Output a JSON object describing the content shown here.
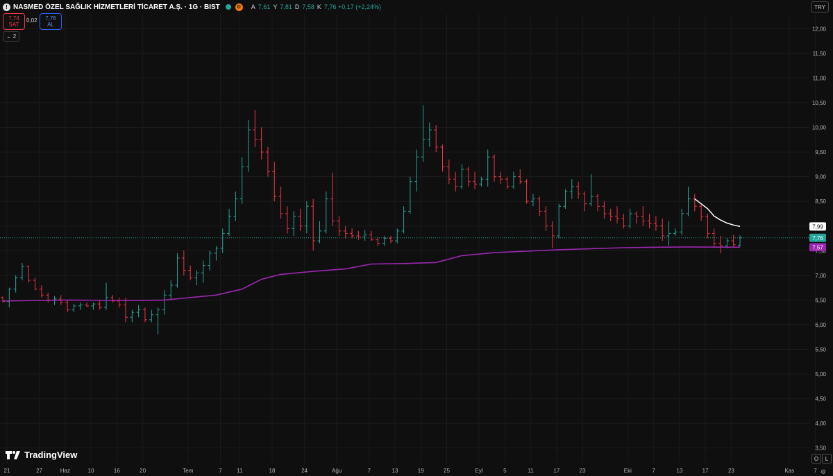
{
  "header": {
    "logo_letter": "!",
    "title": "NASMED ÖZEL SAĞLIK HİZMETLERİ TİCARET A.Ş. · 1G · BIST",
    "d_badge": "D",
    "ohlc": [
      {
        "k": "A",
        "v": "7,61"
      },
      {
        "k": "Y",
        "v": "7,81"
      },
      {
        "k": "D",
        "v": "7,58"
      },
      {
        "k": "K",
        "v": "7,76 +0,17 (+2,24%)"
      }
    ]
  },
  "trade": {
    "sell_price": "7,74",
    "sell_label": "SAT",
    "spread": "0,02",
    "buy_price": "7,76",
    "buy_label": "AL"
  },
  "indicators_toggle": {
    "count": "2"
  },
  "currency": "TRY",
  "branding": "TradingView",
  "bottom_buttons": {
    "log": "O",
    "lock": "L"
  },
  "colors": {
    "up": "#26a69a",
    "down": "#f23645",
    "ma_long": "#9c27b0",
    "ma_short": "#ffffff",
    "background": "#0f0f0f"
  },
  "chart_data": {
    "type": "ohlc",
    "price_axis_ticks": [
      "12,00",
      "11,50",
      "11,00",
      "10,50",
      "10,00",
      "9,50",
      "9,00",
      "8,50",
      "8,00",
      "7,50",
      "7,00",
      "6,50",
      "6,00",
      "5,50",
      "5,00",
      "4,50",
      "4,00",
      "3,50"
    ],
    "ylim": [
      3.2,
      12.3
    ],
    "time_axis_labels": [
      "21",
      "27",
      "Haz",
      "10",
      "16",
      "20",
      "Tem",
      "7",
      "11",
      "18",
      "24",
      "Ağu",
      "7",
      "13",
      "19",
      "25",
      "Eyl",
      "5",
      "11",
      "17",
      "23",
      "Eki",
      "7",
      "13",
      "17",
      "23",
      "Kas",
      "7"
    ],
    "price_labels": {
      "ma_short": "7,99",
      "last": "7,76",
      "ma_long": "7,57"
    },
    "last_price": 7.76,
    "bars": [
      [
        6.55,
        6.57,
        6.45,
        6.47
      ],
      [
        6.47,
        6.75,
        6.35,
        6.72
      ],
      [
        6.72,
        7.0,
        6.65,
        6.95
      ],
      [
        6.95,
        7.25,
        6.9,
        7.18
      ],
      [
        7.18,
        7.2,
        6.85,
        6.9
      ],
      [
        6.9,
        6.95,
        6.7,
        6.72
      ],
      [
        6.72,
        6.8,
        6.55,
        6.6
      ],
      [
        6.6,
        6.65,
        6.45,
        6.5
      ],
      [
        6.5,
        6.58,
        6.4,
        6.52
      ],
      [
        6.52,
        6.6,
        6.4,
        6.45
      ],
      [
        6.45,
        6.5,
        6.25,
        6.3
      ],
      [
        6.3,
        6.42,
        6.25,
        6.38
      ],
      [
        6.38,
        6.45,
        6.3,
        6.4
      ],
      [
        6.4,
        6.45,
        6.35,
        6.38
      ],
      [
        6.38,
        6.45,
        6.3,
        6.42
      ],
      [
        6.42,
        6.5,
        6.3,
        6.35
      ],
      [
        6.35,
        6.85,
        6.3,
        6.55
      ],
      [
        6.55,
        6.6,
        6.45,
        6.48
      ],
      [
        6.48,
        6.55,
        6.35,
        6.4
      ],
      [
        6.4,
        6.55,
        6.05,
        6.15
      ],
      [
        6.15,
        6.3,
        6.05,
        6.25
      ],
      [
        6.25,
        6.4,
        6.15,
        6.3
      ],
      [
        6.3,
        6.35,
        6.05,
        6.1
      ],
      [
        6.1,
        6.3,
        6.05,
        6.2
      ],
      [
        6.2,
        6.35,
        5.8,
        6.3
      ],
      [
        6.3,
        6.7,
        6.2,
        6.6
      ],
      [
        6.6,
        6.9,
        6.5,
        6.8
      ],
      [
        6.8,
        7.45,
        6.75,
        7.35
      ],
      [
        7.35,
        7.5,
        7.0,
        7.1
      ],
      [
        7.1,
        7.2,
        6.9,
        6.95
      ],
      [
        6.95,
        7.1,
        6.8,
        7.05
      ],
      [
        7.05,
        7.3,
        6.85,
        7.2
      ],
      [
        7.2,
        7.5,
        7.1,
        7.45
      ],
      [
        7.45,
        7.6,
        7.3,
        7.55
      ],
      [
        7.55,
        7.95,
        7.45,
        7.85
      ],
      [
        7.85,
        8.35,
        7.8,
        8.2
      ],
      [
        8.2,
        8.7,
        8.1,
        8.55
      ],
      [
        8.55,
        9.4,
        8.45,
        9.2
      ],
      [
        9.2,
        10.15,
        9.1,
        9.95
      ],
      [
        9.95,
        10.35,
        9.6,
        9.75
      ],
      [
        9.75,
        10.0,
        9.35,
        9.5
      ],
      [
        9.5,
        9.6,
        9.0,
        9.1
      ],
      [
        9.1,
        9.3,
        8.5,
        8.6
      ],
      [
        8.6,
        8.8,
        8.15,
        8.25
      ],
      [
        8.25,
        8.4,
        7.85,
        7.95
      ],
      [
        7.95,
        8.3,
        7.8,
        8.2
      ],
      [
        8.2,
        8.35,
        7.9,
        8.0
      ],
      [
        8.0,
        8.5,
        7.85,
        8.4
      ],
      [
        8.4,
        8.55,
        7.5,
        7.7
      ],
      [
        7.7,
        8.1,
        7.65,
        7.9
      ],
      [
        7.9,
        8.7,
        7.85,
        8.55
      ],
      [
        8.55,
        9.08,
        8.0,
        8.1
      ],
      [
        8.1,
        8.2,
        7.8,
        7.9
      ],
      [
        7.9,
        8.0,
        7.75,
        7.85
      ],
      [
        7.85,
        7.95,
        7.75,
        7.8
      ],
      [
        7.8,
        7.9,
        7.72,
        7.78
      ],
      [
        7.78,
        7.92,
        7.7,
        7.82
      ],
      [
        7.82,
        7.9,
        7.7,
        7.72
      ],
      [
        7.72,
        7.78,
        7.6,
        7.65
      ],
      [
        7.65,
        7.8,
        7.6,
        7.75
      ],
      [
        7.75,
        7.8,
        7.65,
        7.7
      ],
      [
        7.7,
        7.95,
        7.65,
        7.9
      ],
      [
        7.9,
        8.4,
        7.85,
        8.3
      ],
      [
        8.3,
        9.0,
        8.25,
        8.9
      ],
      [
        8.9,
        9.55,
        8.7,
        9.4
      ],
      [
        9.4,
        10.45,
        9.3,
        9.75
      ],
      [
        9.75,
        10.1,
        9.6,
        9.95
      ],
      [
        9.95,
        10.05,
        9.5,
        9.6
      ],
      [
        9.6,
        9.65,
        9.1,
        9.2
      ],
      [
        9.2,
        9.35,
        8.85,
        8.95
      ],
      [
        8.95,
        9.1,
        8.7,
        8.8
      ],
      [
        8.8,
        9.25,
        8.75,
        9.15
      ],
      [
        9.15,
        9.2,
        8.8,
        8.9
      ],
      [
        8.9,
        9.1,
        8.75,
        8.85
      ],
      [
        8.85,
        9.0,
        8.8,
        8.95
      ],
      [
        8.95,
        9.55,
        8.8,
        9.4
      ],
      [
        9.4,
        9.45,
        8.9,
        9.0
      ],
      [
        9.0,
        9.1,
        8.85,
        8.95
      ],
      [
        8.95,
        9.0,
        8.75,
        8.8
      ],
      [
        8.8,
        9.1,
        8.75,
        9.0
      ],
      [
        9.0,
        9.15,
        8.85,
        8.9
      ],
      [
        8.9,
        8.95,
        8.45,
        8.5
      ],
      [
        8.5,
        8.65,
        8.4,
        8.55
      ],
      [
        8.55,
        8.6,
        8.2,
        8.3
      ],
      [
        8.3,
        8.4,
        7.9,
        8.0
      ],
      [
        8.0,
        8.1,
        7.55,
        7.8
      ],
      [
        7.8,
        8.45,
        7.75,
        8.4
      ],
      [
        8.4,
        8.75,
        8.35,
        8.7
      ],
      [
        8.7,
        8.95,
        8.55,
        8.8
      ],
      [
        8.8,
        8.9,
        8.55,
        8.65
      ],
      [
        8.65,
        8.7,
        8.3,
        8.45
      ],
      [
        8.45,
        9.05,
        8.4,
        8.6
      ],
      [
        8.6,
        8.65,
        8.3,
        8.4
      ],
      [
        8.4,
        8.5,
        8.15,
        8.25
      ],
      [
        8.25,
        8.35,
        8.1,
        8.2
      ],
      [
        8.2,
        8.4,
        8.05,
        8.15
      ],
      [
        8.15,
        8.25,
        7.95,
        8.0
      ],
      [
        8.0,
        8.35,
        7.95,
        8.25
      ],
      [
        8.25,
        8.3,
        8.05,
        8.2
      ],
      [
        8.2,
        8.4,
        8.0,
        8.1
      ],
      [
        8.1,
        8.25,
        7.95,
        8.05
      ],
      [
        8.05,
        8.2,
        7.9,
        8.0
      ],
      [
        8.0,
        8.15,
        7.7,
        7.8
      ],
      [
        7.8,
        8.1,
        7.6,
        7.85
      ],
      [
        7.85,
        7.95,
        7.8,
        7.88
      ],
      [
        7.88,
        8.35,
        7.82,
        8.25
      ],
      [
        8.25,
        8.8,
        8.2,
        8.55
      ],
      [
        8.55,
        8.65,
        8.3,
        8.4
      ],
      [
        8.4,
        8.45,
        8.1,
        8.2
      ],
      [
        8.2,
        8.25,
        7.75,
        7.85
      ],
      [
        7.85,
        7.95,
        7.55,
        7.65
      ],
      [
        7.65,
        7.8,
        7.45,
        7.6
      ],
      [
        7.6,
        7.75,
        7.55,
        7.7
      ],
      [
        7.7,
        7.82,
        7.58,
        7.62
      ],
      [
        7.61,
        7.81,
        7.58,
        7.76
      ]
    ],
    "ma_long": [
      [
        0,
        6.48
      ],
      [
        10,
        6.5
      ],
      [
        20,
        6.49
      ],
      [
        25,
        6.5
      ],
      [
        29,
        6.55
      ],
      [
        33,
        6.6
      ],
      [
        37,
        6.72
      ],
      [
        40,
        6.92
      ],
      [
        43,
        7.02
      ],
      [
        48,
        7.08
      ],
      [
        53,
        7.13
      ],
      [
        57,
        7.23
      ],
      [
        62,
        7.24
      ],
      [
        67,
        7.26
      ],
      [
        71,
        7.4
      ],
      [
        76,
        7.46
      ],
      [
        81,
        7.49
      ],
      [
        86,
        7.52
      ],
      [
        91,
        7.54
      ],
      [
        96,
        7.56
      ],
      [
        101,
        7.57
      ],
      [
        106,
        7.575
      ],
      [
        114,
        7.57
      ]
    ],
    "ma_short": [
      [
        107,
        8.55
      ],
      [
        108,
        8.45
      ],
      [
        109,
        8.35
      ],
      [
        110,
        8.2
      ],
      [
        111,
        8.12
      ],
      [
        112,
        8.06
      ],
      [
        113,
        8.02
      ],
      [
        114,
        7.99
      ]
    ]
  }
}
